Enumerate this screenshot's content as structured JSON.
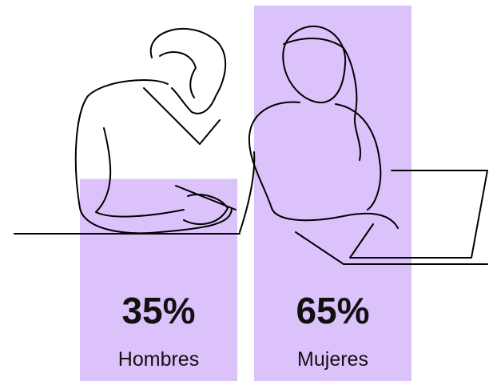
{
  "chart_data": {
    "type": "bar",
    "categories": [
      "Hombres",
      "Mujeres"
    ],
    "values": [
      35,
      65
    ],
    "value_labels": [
      "35%",
      "65%"
    ],
    "color": "#dcc2fb"
  }
}
